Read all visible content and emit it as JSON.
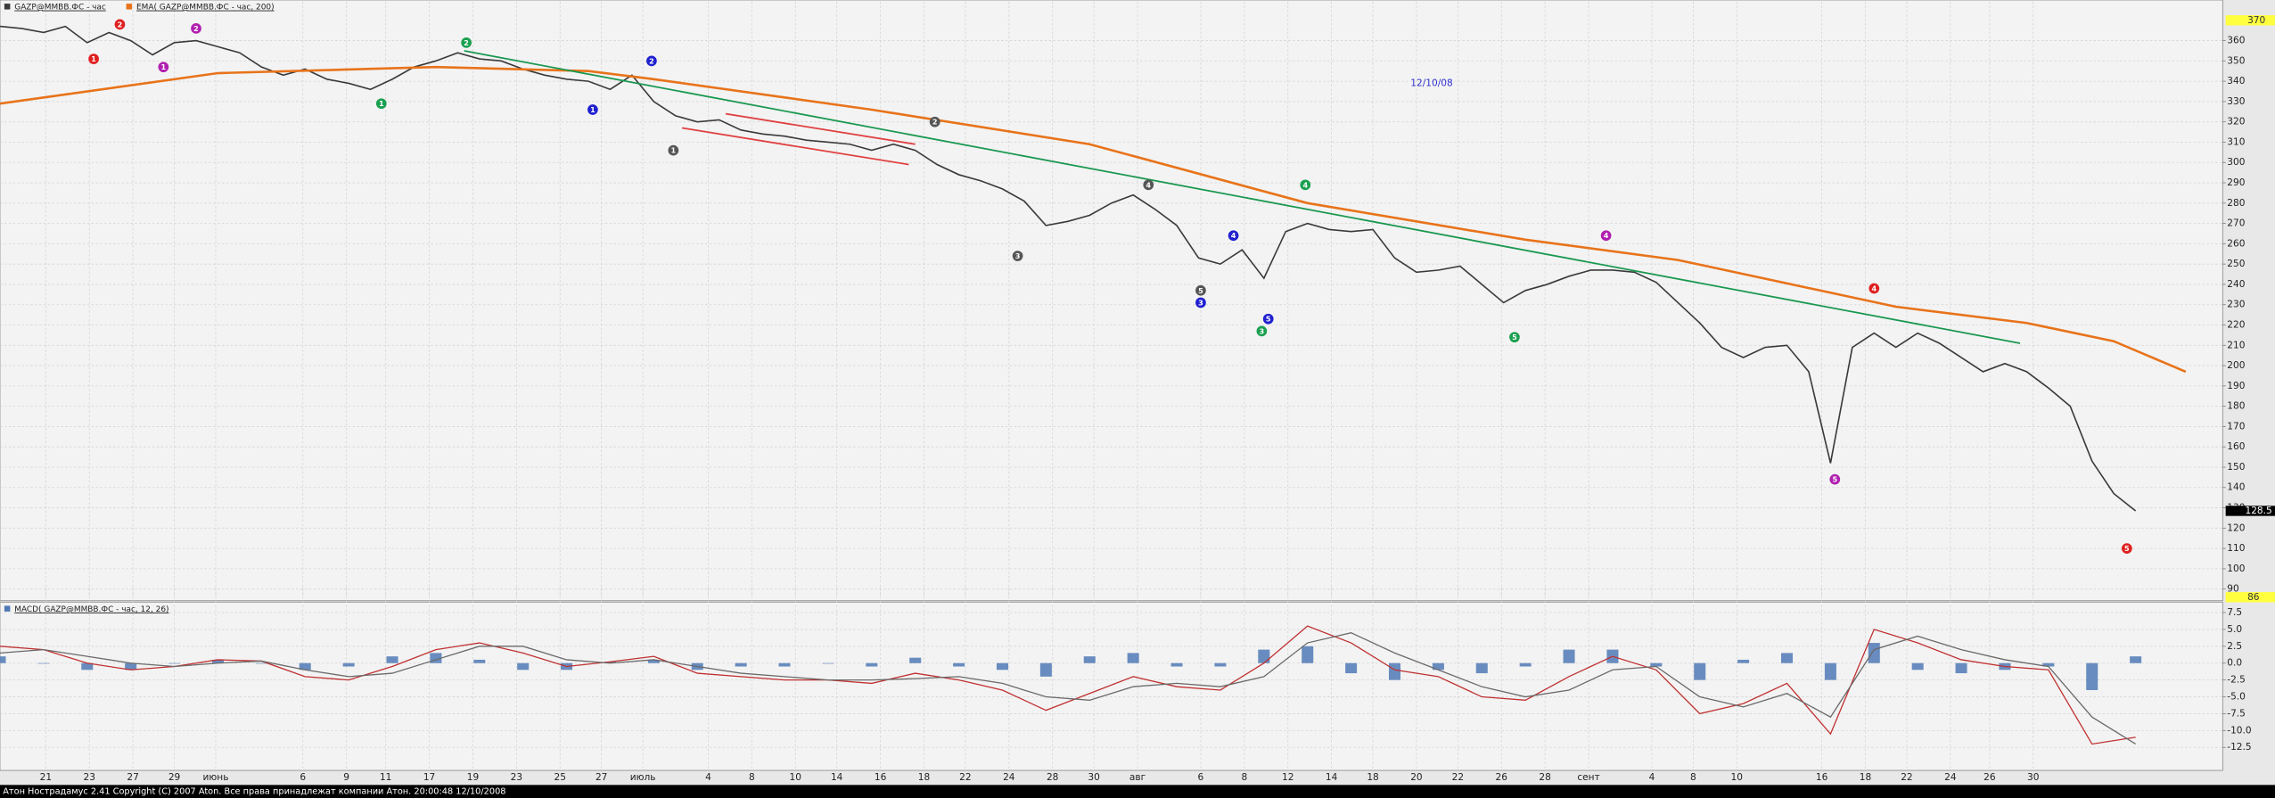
{
  "chart_data": [
    {
      "type": "line",
      "xlim": [
        0,
        102
      ],
      "ylim": [
        86,
        370
      ],
      "yticks": [
        90,
        100,
        110,
        120,
        130,
        140,
        150,
        160,
        170,
        180,
        190,
        200,
        210,
        220,
        230,
        240,
        250,
        260,
        270,
        280,
        290,
        300,
        310,
        320,
        330,
        340,
        350,
        360
      ],
      "xticks": [
        {
          "value": 2.1,
          "label": "21"
        },
        {
          "value": 4.1,
          "label": "23"
        },
        {
          "value": 6.1,
          "label": "27"
        },
        {
          "value": 8,
          "label": "29"
        },
        {
          "value": 9.9,
          "label": "июнь"
        },
        {
          "value": 13.9,
          "label": "6"
        },
        {
          "value": 15.9,
          "label": "9"
        },
        {
          "value": 17.7,
          "label": "11"
        },
        {
          "value": 19.7,
          "label": "17"
        },
        {
          "value": 21.7,
          "label": "19"
        },
        {
          "value": 23.7,
          "label": "23"
        },
        {
          "value": 25.7,
          "label": "25"
        },
        {
          "value": 27.6,
          "label": "27"
        },
        {
          "value": 29.5,
          "label": "июль"
        },
        {
          "value": 32.5,
          "label": "4"
        },
        {
          "value": 34.5,
          "label": "8"
        },
        {
          "value": 36.5,
          "label": "10"
        },
        {
          "value": 38.4,
          "label": "14"
        },
        {
          "value": 40.4,
          "label": "16"
        },
        {
          "value": 42.4,
          "label": "18"
        },
        {
          "value": 44.3,
          "label": "22"
        },
        {
          "value": 46.3,
          "label": "24"
        },
        {
          "value": 48.3,
          "label": "28"
        },
        {
          "value": 50.2,
          "label": "30"
        },
        {
          "value": 52.2,
          "label": "авг"
        },
        {
          "value": 55.1,
          "label": "6"
        },
        {
          "value": 57.1,
          "label": "8"
        },
        {
          "value": 59.1,
          "label": "12"
        },
        {
          "value": 61.1,
          "label": "14"
        },
        {
          "value": 63,
          "label": "18"
        },
        {
          "value": 65,
          "label": "20"
        },
        {
          "value": 66.9,
          "label": "22"
        },
        {
          "value": 68.9,
          "label": "26"
        },
        {
          "value": 70.9,
          "label": "28"
        },
        {
          "value": 72.9,
          "label": "сент"
        },
        {
          "value": 75.8,
          "label": "4"
        },
        {
          "value": 77.7,
          "label": "8"
        },
        {
          "value": 79.7,
          "label": "10"
        },
        {
          "value": 83.6,
          "label": "16"
        },
        {
          "value": 85.6,
          "label": "18"
        },
        {
          "value": 87.5,
          "label": "22"
        },
        {
          "value": 89.5,
          "label": "24"
        },
        {
          "value": 91.3,
          "label": "26"
        },
        {
          "value": 93.3,
          "label": "30"
        }
      ],
      "grid": true,
      "series": [
        {
          "name": "GAZP@MMBB.ФС - час",
          "color": "#3a3a3a",
          "values": [
            367,
            366,
            364,
            367,
            359,
            364,
            360,
            353,
            359,
            360,
            357,
            354,
            347,
            343,
            346,
            341,
            339,
            336,
            341,
            347,
            350,
            354,
            351,
            350,
            346,
            343,
            341,
            340,
            336,
            343,
            330,
            323,
            320,
            321,
            316,
            314,
            313,
            311,
            310,
            309,
            306,
            309,
            306,
            299,
            294,
            291,
            287,
            281,
            269,
            271,
            274,
            280,
            284,
            277,
            269,
            253,
            250,
            257,
            243,
            266,
            270,
            267,
            266,
            267,
            253,
            246,
            247,
            249,
            240,
            231,
            237,
            240,
            244,
            247,
            247,
            246,
            241,
            231,
            221,
            209,
            204,
            209,
            210,
            197,
            152,
            209,
            216,
            209,
            216,
            211,
            204,
            197,
            201,
            197,
            189,
            180,
            153,
            137,
            128.5
          ]
        },
        {
          "name": "EMA( GAZP@MMBB.ФС - час, 200)",
          "color": "#e8731a",
          "x": [
            0,
            10,
            20,
            27,
            30,
            40,
            50,
            60,
            70,
            77,
            87,
            93,
            97,
            100.3
          ],
          "values": [
            329,
            344,
            347,
            345,
            341,
            326,
            309,
            280,
            262,
            252,
            229,
            221,
            212,
            197
          ]
        }
      ],
      "trendlines": [
        {
          "color": "#1a9850",
          "x": [
            21.3,
            92.7
          ],
          "values": [
            355,
            211
          ]
        },
        {
          "color": "#e04040",
          "x": [
            31.3,
            41.7
          ],
          "values": [
            317,
            299
          ]
        },
        {
          "color": "#e04040",
          "x": [
            33.3,
            42
          ],
          "values": [
            324,
            309
          ]
        }
      ],
      "wave_labels": [
        {
          "label": "1",
          "color": "#e02020",
          "x": 4.3,
          "y": 351
        },
        {
          "label": "2",
          "color": "#e02020",
          "x": 5.5,
          "y": 368
        },
        {
          "label": "1",
          "color": "#b020b0",
          "x": 7.5,
          "y": 347
        },
        {
          "label": "2",
          "color": "#b020b0",
          "x": 9,
          "y": 366
        },
        {
          "label": "1",
          "color": "#1aa050",
          "x": 17.5,
          "y": 329
        },
        {
          "label": "2",
          "color": "#1aa050",
          "x": 21.4,
          "y": 359
        },
        {
          "label": "1",
          "color": "#2020d0",
          "x": 27.2,
          "y": 326
        },
        {
          "label": "2",
          "color": "#2020d0",
          "x": 29.9,
          "y": 350
        },
        {
          "label": "1",
          "color": "#555555",
          "x": 30.9,
          "y": 306
        },
        {
          "label": "2",
          "color": "#555555",
          "x": 42.9,
          "y": 320
        },
        {
          "label": "3",
          "color": "#555555",
          "x": 46.7,
          "y": 254
        },
        {
          "label": "4",
          "color": "#555555",
          "x": 52.7,
          "y": 289
        },
        {
          "label": "5",
          "color": "#555555",
          "x": 55.1,
          "y": 237
        },
        {
          "label": "3",
          "color": "#2020d0",
          "x": 55.1,
          "y": 231
        },
        {
          "label": "4",
          "color": "#2020d0",
          "x": 56.6,
          "y": 264
        },
        {
          "label": "5",
          "color": "#2020d0",
          "x": 58.2,
          "y": 223
        },
        {
          "label": "3",
          "color": "#1aa050",
          "x": 57.9,
          "y": 217
        },
        {
          "label": "4",
          "color": "#1aa050",
          "x": 59.9,
          "y": 289
        },
        {
          "label": "5",
          "color": "#1aa050",
          "x": 69.5,
          "y": 214
        },
        {
          "label": "4",
          "color": "#b020b0",
          "x": 73.7,
          "y": 264
        },
        {
          "label": "5",
          "color": "#b020b0",
          "x": 84.2,
          "y": 144
        },
        {
          "label": "4",
          "color": "#e02020",
          "x": 86,
          "y": 238
        },
        {
          "label": "5",
          "color": "#e02020",
          "x": 97.6,
          "y": 110
        }
      ],
      "annotations": [
        {
          "text": "12/10/08",
          "color": "#3030d0",
          "x": 65.7,
          "y": 339
        }
      ]
    },
    {
      "type": "macd",
      "title": "MACD( GAZP@MMBB.ФС - час, 12, 26)",
      "xlim": [
        0,
        102
      ],
      "ylim": [
        -15.7,
        8.4
      ],
      "yticks": [
        7.5,
        {
          "value": 5,
          "label": "5.0"
        },
        2.5,
        {
          "value": 0,
          "label": "0.0"
        },
        -2.5,
        {
          "value": -5,
          "label": "-5.0"
        },
        -7.5,
        {
          "value": -10,
          "label": "-10.0"
        },
        -12.5
      ],
      "x": [
        0,
        2,
        4,
        6,
        8,
        10,
        12,
        14,
        16,
        18,
        20,
        22,
        24,
        26,
        28,
        30,
        32,
        34,
        36,
        38,
        40,
        42,
        44,
        46,
        48,
        50,
        52,
        54,
        56,
        58,
        60,
        62,
        64,
        66,
        68,
        70,
        72,
        74,
        76,
        78,
        80,
        82,
        84,
        86,
        88,
        90,
        92,
        94,
        96,
        98
      ],
      "series": [
        {
          "kind": "histogram",
          "color": "#4f79b5",
          "values": [
            1,
            0,
            -1,
            -1,
            0,
            0.5,
            0,
            -1,
            -0.5,
            1,
            1.5,
            0.5,
            -1,
            -1,
            0.2,
            0.5,
            -1,
            -0.5,
            -0.5,
            0,
            -0.5,
            0.8,
            -0.5,
            -1,
            -2,
            1,
            1.5,
            -0.5,
            -0.5,
            2,
            2.5,
            -1.5,
            -2.5,
            -1,
            -1.5,
            -0.5,
            2,
            2,
            -0.5,
            -2.5,
            0.5,
            1.5,
            -2.5,
            3,
            -1,
            -1.5,
            -1,
            -0.5,
            -4,
            1
          ]
        },
        {
          "kind": "line",
          "color": "#c03030",
          "values": [
            2.5,
            2,
            0,
            -1,
            -0.5,
            0.5,
            0.3,
            -2,
            -2.5,
            -0.5,
            2,
            3,
            1.5,
            -0.5,
            0.2,
            1,
            -1.5,
            -2,
            -2.5,
            -2.5,
            -3,
            -1.5,
            -2.5,
            -4,
            -7,
            -4.5,
            -2,
            -3.5,
            -4,
            0,
            5.5,
            3,
            -1,
            -2,
            -5,
            -5.5,
            -2,
            1,
            -1,
            -7.5,
            -6,
            -3,
            -10.5,
            5,
            3,
            0.5,
            -0.5,
            -1,
            -12,
            -11
          ]
        },
        {
          "kind": "line",
          "color": "#6a6a6a",
          "values": [
            1.5,
            2,
            1,
            0,
            -0.5,
            0,
            0.3,
            -1,
            -2,
            -1.5,
            0.5,
            2.5,
            2.5,
            0.5,
            0,
            0.5,
            -0.5,
            -1.5,
            -2,
            -2.5,
            -2.5,
            -2.3,
            -2,
            -3,
            -5,
            -5.5,
            -3.5,
            -3,
            -3.5,
            -2,
            3,
            4.5,
            1.5,
            -1,
            -3.5,
            -5,
            -4,
            -1,
            -0.5,
            -5,
            -6.5,
            -4.5,
            -8,
            2,
            4,
            2,
            0.5,
            -0.5,
            -8,
            -12
          ]
        }
      ]
    }
  ],
  "status_bar": "Атон Нострадамус 2.41 Copyright (C) 2007 Aton. Все права принадлежат компании Атон. 20:00:48 12/10/2008"
}
